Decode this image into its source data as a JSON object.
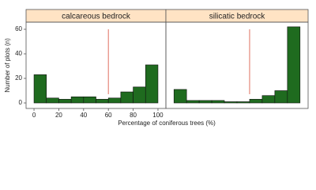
{
  "chart_data": [
    {
      "type": "histogram",
      "title": "calcareous bedrock",
      "xlabel": "Percentage of coniferous trees (%)",
      "ylabel": "Number of plots (n)",
      "bins": [
        0,
        10,
        20,
        30,
        40,
        50,
        60,
        70,
        80,
        90,
        100
      ],
      "values": [
        23,
        4,
        3,
        5,
        5,
        3,
        4,
        9,
        13,
        31
      ],
      "color": "#1f6b1f",
      "xlim": [
        -6.4,
        106.4
      ],
      "ylim": [
        -4.5,
        65.8
      ],
      "xticks": [
        0,
        20,
        40,
        60,
        80,
        100
      ],
      "yticks": [
        0,
        20,
        40,
        60
      ],
      "vline": 60,
      "vline_color": "#e07060"
    },
    {
      "type": "histogram",
      "title": "silicatic bedrock",
      "bins": [
        0,
        10,
        20,
        30,
        40,
        50,
        60,
        70,
        80,
        90,
        100
      ],
      "values": [
        11,
        2,
        2,
        2,
        1,
        1,
        3,
        6,
        10,
        62
      ],
      "color": "#1f6b1f",
      "xlim": [
        -6.4,
        106.4
      ],
      "ylim": [
        -4.5,
        65.8
      ],
      "vline": 60,
      "vline_color": "#e07060"
    }
  ]
}
